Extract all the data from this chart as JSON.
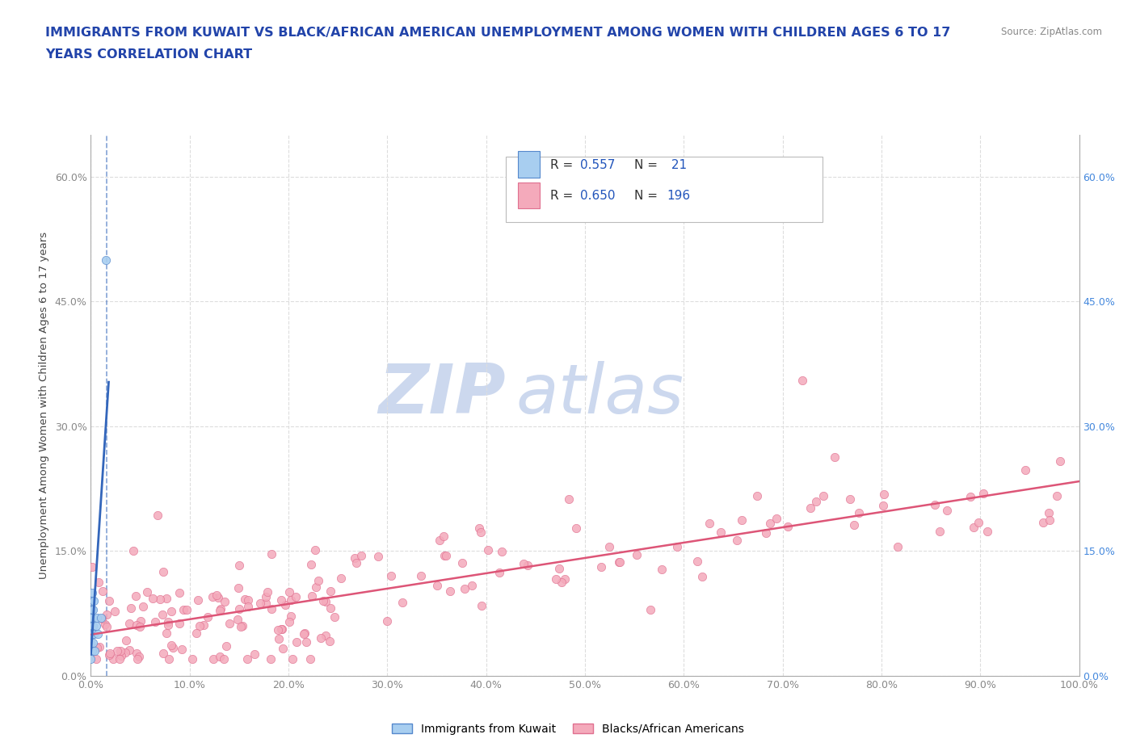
{
  "title_line1": "IMMIGRANTS FROM KUWAIT VS BLACK/AFRICAN AMERICAN UNEMPLOYMENT AMONG WOMEN WITH CHILDREN AGES 6 TO 17",
  "title_line2": "YEARS CORRELATION CHART",
  "source_text": "Source: ZipAtlas.com",
  "ylabel": "Unemployment Among Women with Children Ages 6 to 17 years",
  "xlim": [
    0,
    1.0
  ],
  "ylim": [
    0,
    0.65
  ],
  "xticks": [
    0.0,
    0.1,
    0.2,
    0.3,
    0.4,
    0.5,
    0.6,
    0.7,
    0.8,
    0.9,
    1.0
  ],
  "xticklabels": [
    "0.0%",
    "10.0%",
    "20.0%",
    "30.0%",
    "40.0%",
    "50.0%",
    "60.0%",
    "70.0%",
    "80.0%",
    "90.0%",
    "100.0%"
  ],
  "yticks": [
    0.0,
    0.15,
    0.3,
    0.45,
    0.6
  ],
  "yticklabels": [
    "0.0%",
    "15.0%",
    "30.0%",
    "45.0%",
    "60.0%"
  ],
  "blue_color": "#a8cef0",
  "pink_color": "#f4aabb",
  "blue_line_color": "#3366bb",
  "pink_line_color": "#dd5577",
  "blue_edge_color": "#5588cc",
  "pink_edge_color": "#e07090",
  "R_blue": 0.557,
  "N_blue": 21,
  "R_pink": 0.65,
  "N_pink": 196,
  "legend_R_color": "#2255bb",
  "legend_N_color": "#2255bb",
  "watermark_zip": "ZIP",
  "watermark_atlas": "atlas",
  "watermark_color": "#ccd8ee",
  "title_color": "#2244aa",
  "tick_color": "#888888",
  "grid_color": "#dddddd",
  "right_tick_color": "#4488dd",
  "background_color": "#ffffff",
  "legend_box_color": "#eeeeee",
  "bottom_legend_label1": "Immigrants from Kuwait",
  "bottom_legend_label2": "Blacks/African Americans"
}
